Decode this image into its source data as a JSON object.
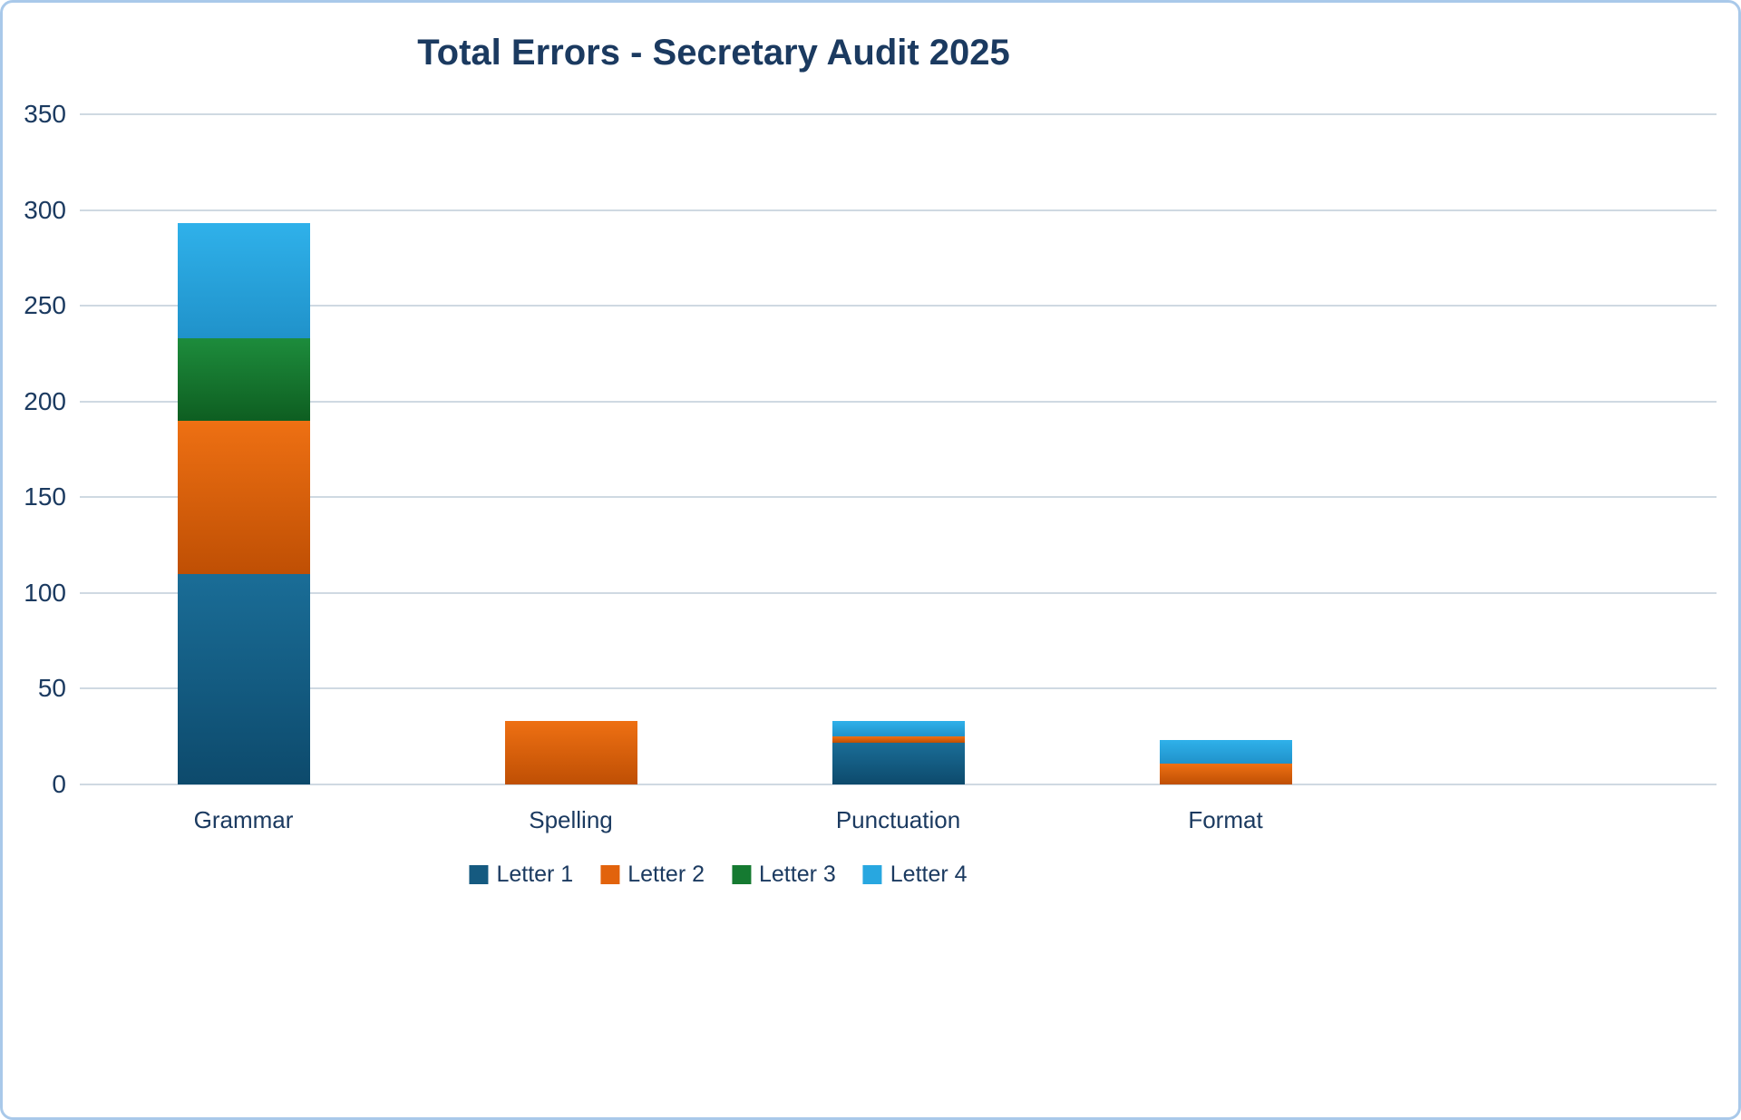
{
  "chart_data": {
    "type": "bar",
    "stacked": true,
    "title": "Total Errors - Secretary Audit 2025",
    "categories": [
      "Grammar",
      "Spelling",
      "Punctuation",
      "Format"
    ],
    "series": [
      {
        "name": "Letter 1",
        "color": "#155a80",
        "color_top": "#1a6d97",
        "color_bottom": "#0d4a6c",
        "values": [
          110,
          0,
          22,
          0
        ]
      },
      {
        "name": "Letter 2",
        "color": "#e2630c",
        "color_top": "#ee7013",
        "color_bottom": "#bf4f04",
        "values": [
          80,
          33,
          3,
          11
        ]
      },
      {
        "name": "Letter 3",
        "color": "#157a31",
        "color_top": "#1d8c3c",
        "color_bottom": "#0e5e21",
        "values": [
          43,
          0,
          0,
          0
        ]
      },
      {
        "name": "Letter 4",
        "color": "#28a7e0",
        "color_top": "#2fb1ea",
        "color_bottom": "#2092ca",
        "values": [
          60,
          0,
          8,
          12
        ]
      }
    ],
    "totals": {
      "Grammar": 293,
      "Spelling": 33,
      "Punctuation": 33,
      "Format": 23
    },
    "ylim": [
      0,
      350
    ],
    "yticks": [
      0,
      50,
      100,
      150,
      200,
      250,
      300,
      350
    ],
    "grid": true,
    "legend_position": "bottom"
  }
}
